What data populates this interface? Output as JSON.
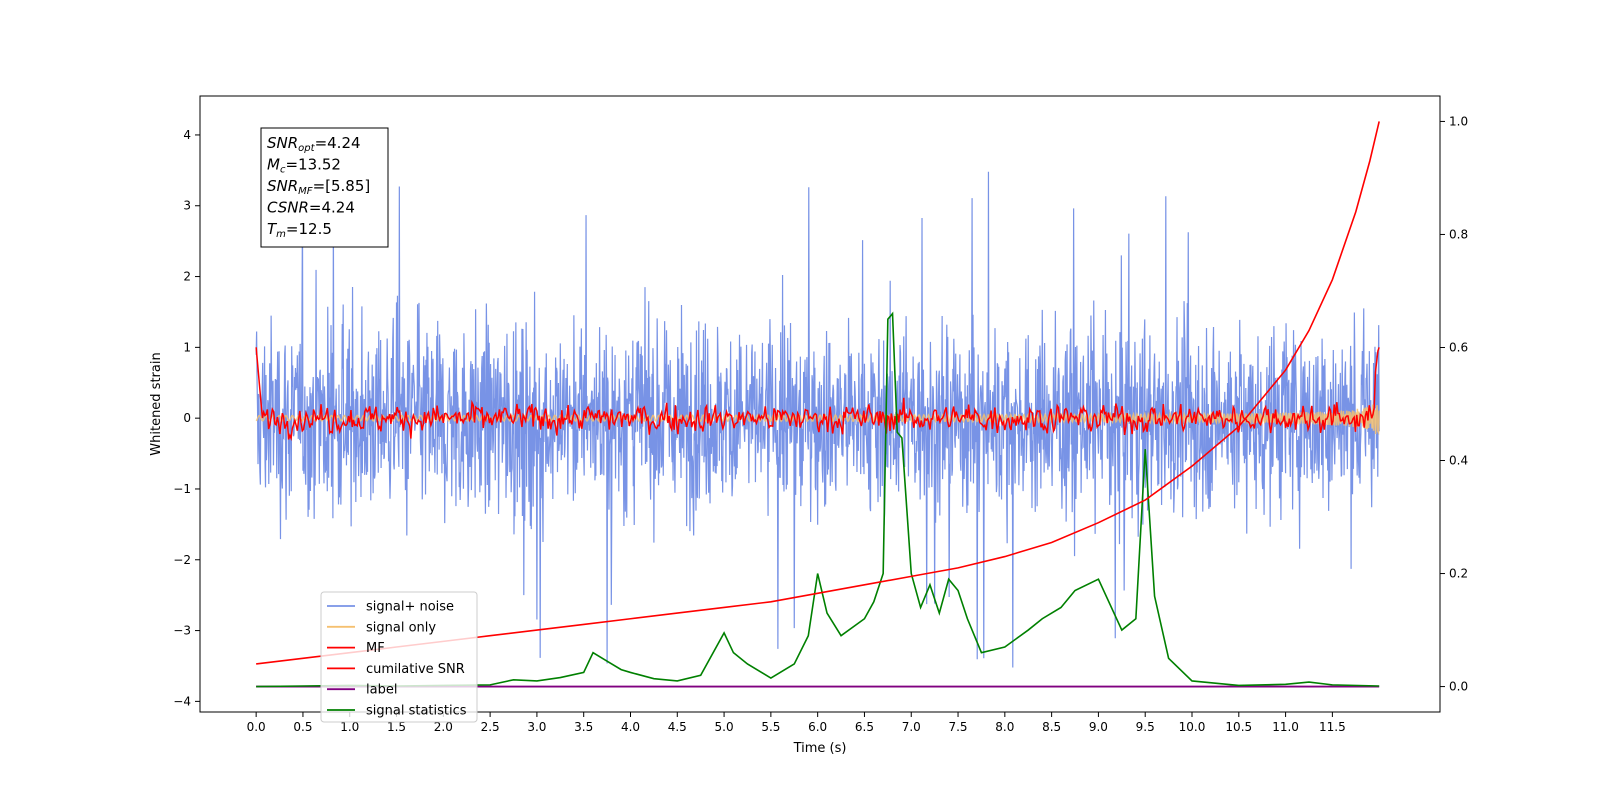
{
  "chart_data": {
    "type": "line",
    "title": "",
    "xlabel": "Time (s)",
    "ylabel": "Whitened strain",
    "ylabel_right": "",
    "xlim": [
      -0.6,
      12.65
    ],
    "ylim": [
      -4.15,
      4.55
    ],
    "ylim_right": [
      -0.045,
      1.045
    ],
    "x_ticks": [
      "0.0",
      "0.5",
      "1.0",
      "1.5",
      "2.0",
      "2.5",
      "3.0",
      "3.5",
      "4.0",
      "4.5",
      "5.0",
      "5.5",
      "6.0",
      "6.5",
      "7.0",
      "7.5",
      "8.0",
      "8.5",
      "9.0",
      "9.5",
      "10.0",
      "10.5",
      "11.0",
      "11.5"
    ],
    "y_ticks": [
      "4",
      "3",
      "2",
      "1",
      "0",
      "−1",
      "−2",
      "−3",
      "−4"
    ],
    "y_ticks_right": [
      "1.0",
      "0.8",
      "0.6",
      "0.4",
      "0.2",
      "0.0"
    ],
    "grid": false,
    "legend_position": "lower-left",
    "annotation_box": {
      "position": "top-left",
      "lines": [
        {
          "base": "SNR",
          "sub": "opt",
          "value": "=4.24"
        },
        {
          "base": "M",
          "sub": "c",
          "value": "=13.52"
        },
        {
          "base": "SNR",
          "sub": "MF",
          "value": "=[5.85]"
        },
        {
          "base": "CSNR",
          "sub": "",
          "value": "=4.24"
        },
        {
          "base": "T",
          "sub": "m",
          "value": "=12.5"
        }
      ]
    },
    "series": [
      {
        "name": "signal+ noise",
        "color": "#7893e6",
        "axis": "left",
        "style": "dense noise, roughly ±2 with spikes to 4.17",
        "x_range": [
          0,
          12
        ],
        "amplitude": 1.0
      },
      {
        "name": "signal only",
        "color": "#f5c070",
        "axis": "left",
        "style": "chirp rising to about 0.25 near t=12",
        "x_range": [
          0,
          12
        ]
      },
      {
        "name": "MF",
        "color": "#ff0000",
        "axis": "left",
        "style": "fluctuating around 0, about ±0.3",
        "x_range": [
          0,
          12
        ]
      },
      {
        "name": "cumilative SNR",
        "color": "#ff0000",
        "axis": "right",
        "x": [
          0.0,
          0.5,
          1.0,
          1.5,
          2.0,
          2.5,
          3.0,
          3.5,
          4.0,
          4.5,
          5.0,
          5.5,
          6.0,
          6.5,
          7.0,
          7.5,
          8.0,
          8.5,
          9.0,
          9.5,
          10.0,
          10.5,
          11.0,
          11.25,
          11.5,
          11.75,
          11.9,
          12.0
        ],
        "values": [
          0.04,
          0.05,
          0.06,
          0.07,
          0.08,
          0.09,
          0.1,
          0.11,
          0.12,
          0.13,
          0.14,
          0.15,
          0.165,
          0.18,
          0.195,
          0.21,
          0.23,
          0.255,
          0.29,
          0.33,
          0.39,
          0.46,
          0.56,
          0.63,
          0.72,
          0.84,
          0.93,
          1.0
        ]
      },
      {
        "name": "label",
        "color": "#800080",
        "axis": "right",
        "x": [
          0.0,
          12.0
        ],
        "values": [
          0.0,
          0.0
        ]
      },
      {
        "name": "signal statistics",
        "color": "#008000",
        "axis": "right",
        "x": [
          0.0,
          0.5,
          1.0,
          1.5,
          2.0,
          2.5,
          2.75,
          3.0,
          3.25,
          3.5,
          3.6,
          3.75,
          3.9,
          4.0,
          4.25,
          4.5,
          4.75,
          5.0,
          5.1,
          5.25,
          5.5,
          5.75,
          5.9,
          6.0,
          6.1,
          6.25,
          6.5,
          6.6,
          6.7,
          6.75,
          6.8,
          6.85,
          6.9,
          7.0,
          7.1,
          7.2,
          7.3,
          7.4,
          7.5,
          7.6,
          7.75,
          8.0,
          8.25,
          8.4,
          8.6,
          8.75,
          9.0,
          9.25,
          9.4,
          9.5,
          9.6,
          9.75,
          10.0,
          10.5,
          11.0,
          11.25,
          11.5,
          12.0
        ],
        "values": [
          0.0,
          0.001,
          0.002,
          0.001,
          0.002,
          0.003,
          0.012,
          0.01,
          0.016,
          0.025,
          0.06,
          0.045,
          0.03,
          0.025,
          0.014,
          0.01,
          0.02,
          0.095,
          0.06,
          0.04,
          0.015,
          0.04,
          0.09,
          0.2,
          0.13,
          0.09,
          0.12,
          0.15,
          0.2,
          0.65,
          0.66,
          0.45,
          0.44,
          0.2,
          0.14,
          0.18,
          0.13,
          0.19,
          0.17,
          0.12,
          0.06,
          0.07,
          0.1,
          0.12,
          0.14,
          0.17,
          0.19,
          0.1,
          0.12,
          0.42,
          0.16,
          0.05,
          0.01,
          0.002,
          0.004,
          0.008,
          0.003,
          0.001
        ]
      }
    ]
  }
}
